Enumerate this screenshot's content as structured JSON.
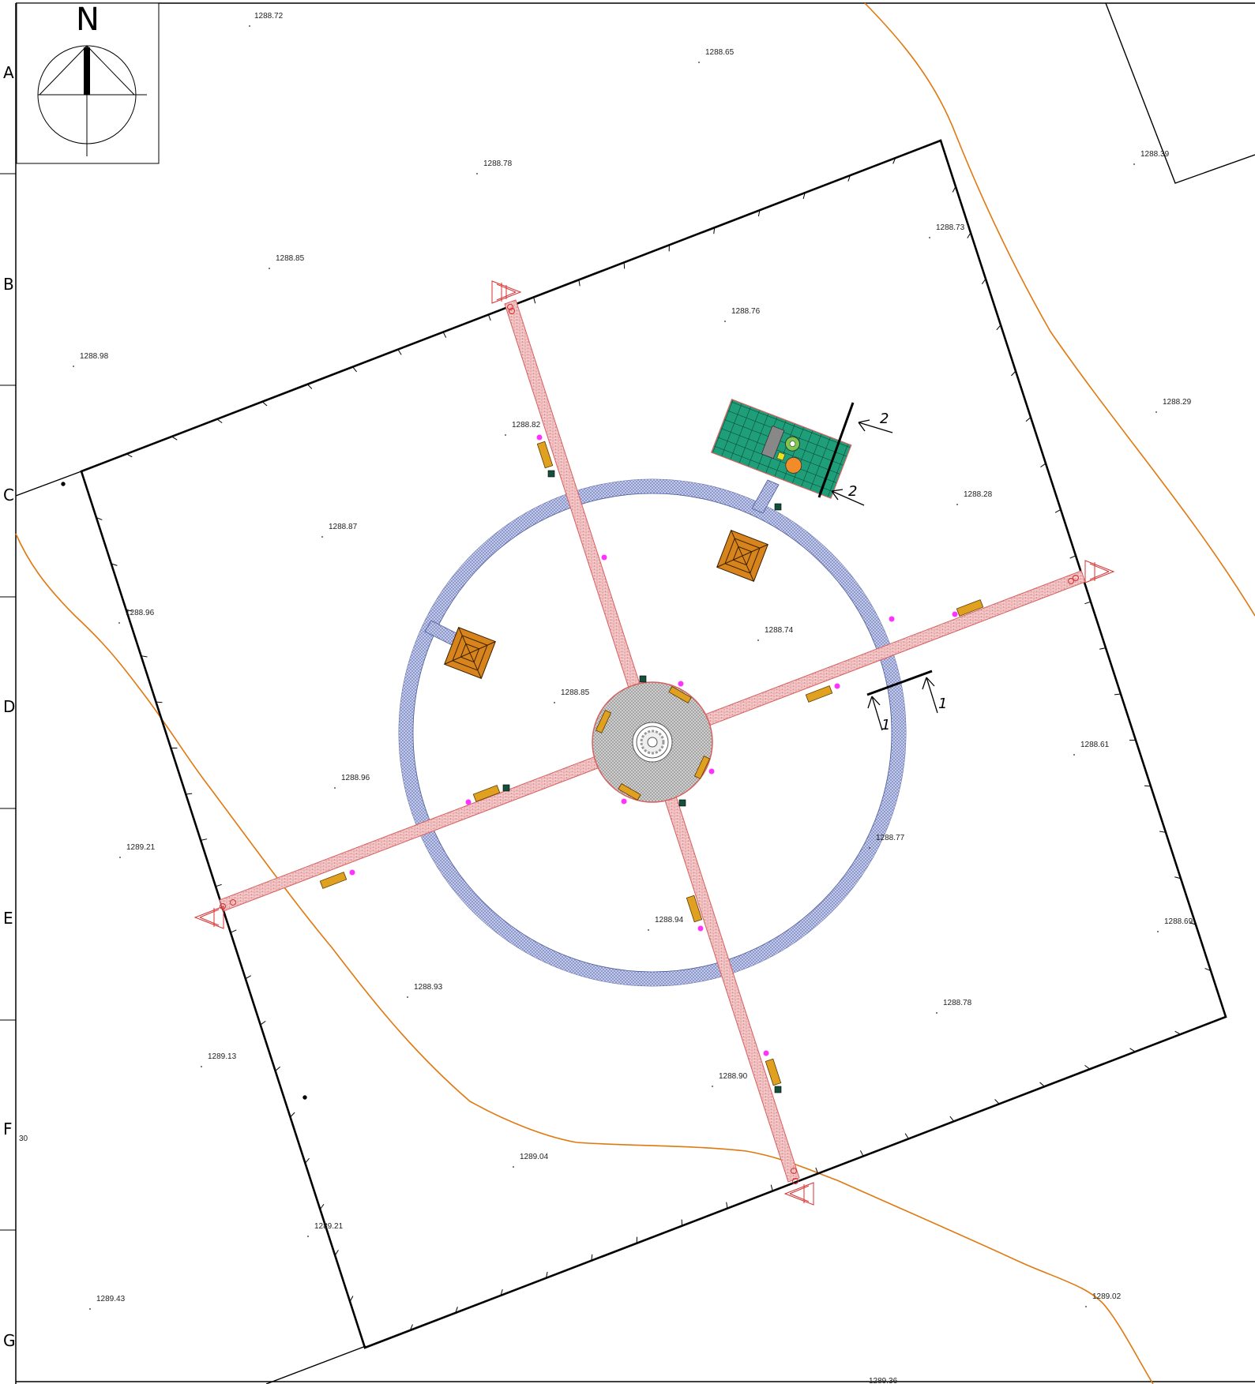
{
  "drawing": {
    "north_label": "N",
    "grid_rows": [
      "A",
      "B",
      "C",
      "D",
      "E",
      "F",
      "G"
    ],
    "margin_note": "30",
    "section_marks": [
      "1",
      "1",
      "2",
      "2"
    ],
    "elevations": [
      "1288.72",
      "1288.65",
      "1288.78",
      "1288.39",
      "1288.85",
      "1288.73",
      "1288.76",
      "1288.98",
      "1288.29",
      "1288.82",
      "1288.28",
      "1288.87",
      "1288.96",
      "1288.74",
      "1288.85",
      "1288.61",
      "1288.96",
      "1288.77",
      "1289.21",
      "1288.94",
      "1288.69",
      "1288.93",
      "1288.78",
      "1289.13",
      "1288.90",
      "1289.04",
      "1289.21",
      "1289.43",
      "1289.02",
      "1289.36"
    ]
  },
  "colors": {
    "boundary": "#000000",
    "contour": "#e07810",
    "path_fill": "#f4cccc",
    "path_edge": "#d86060",
    "ring_fill": "#a8b4e0",
    "plaza_fill": "#bdbdbd",
    "playground_fill": "#1f9e7a",
    "planter_fill": "#d8841c",
    "bench_fill": "#e0a020",
    "lamp": "#ff33ff",
    "bin": "#14503c",
    "fountain": "#9a9a9a"
  }
}
